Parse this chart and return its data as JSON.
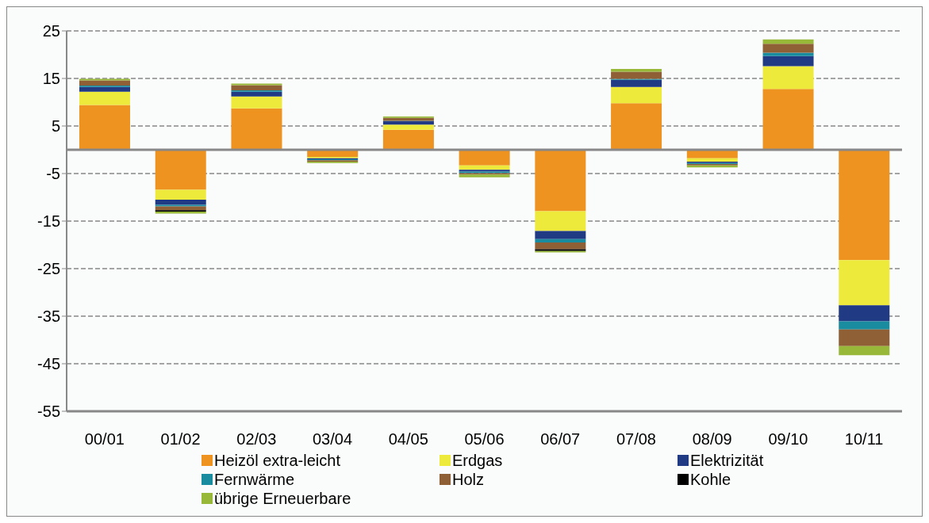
{
  "chart_data": {
    "type": "bar",
    "stacked": true,
    "categories": [
      "00/01",
      "01/02",
      "02/03",
      "03/04",
      "04/05",
      "05/06",
      "06/07",
      "07/08",
      "08/09",
      "09/10",
      "10/11"
    ],
    "series": [
      {
        "name": "Heizöl extra-leicht",
        "color": "#ee9220",
        "values": [
          9.4,
          -8.4,
          8.7,
          -1.5,
          4.2,
          -3.3,
          -12.9,
          9.8,
          -1.8,
          12.8,
          -23.2
        ]
      },
      {
        "name": "Erdgas",
        "color": "#eeea3c",
        "values": [
          2.8,
          -2.1,
          2.5,
          -0.3,
          1.1,
          -0.9,
          -4.2,
          3.4,
          -0.7,
          4.8,
          -9.5
        ]
      },
      {
        "name": "Elektrizität",
        "color": "#213a84",
        "values": [
          1.0,
          -1.1,
          1.0,
          -0.2,
          0.7,
          -0.4,
          -1.7,
          1.5,
          -0.3,
          2.1,
          -3.4
        ]
      },
      {
        "name": "Fernwärme",
        "color": "#1a8ca0",
        "values": [
          0.3,
          -0.3,
          0.3,
          -0.2,
          0.1,
          -0.3,
          -0.7,
          0.2,
          -0.2,
          0.7,
          -1.7
        ]
      },
      {
        "name": "Holz",
        "color": "#8f5f35",
        "values": [
          1.1,
          -0.8,
          1.1,
          -0.3,
          0.6,
          -0.3,
          -1.4,
          1.5,
          -0.3,
          1.9,
          -3.5
        ]
      },
      {
        "name": "Kohle",
        "color": "#000000",
        "values": [
          0,
          -0.3,
          0,
          0,
          0,
          0,
          -0.4,
          0,
          0,
          0,
          0
        ]
      },
      {
        "name": "übrige Erneuerbare",
        "color": "#98b83a",
        "values": [
          0.3,
          -0.4,
          0.3,
          -0.3,
          0.3,
          -0.6,
          -0.3,
          0.6,
          -0.4,
          0.9,
          -1.9
        ]
      }
    ],
    "ylim": [
      -55,
      25
    ],
    "yticks": [
      -55,
      -45,
      -35,
      -25,
      -15,
      -5,
      5,
      15,
      25
    ],
    "grid": "y",
    "legend": "bottom"
  }
}
